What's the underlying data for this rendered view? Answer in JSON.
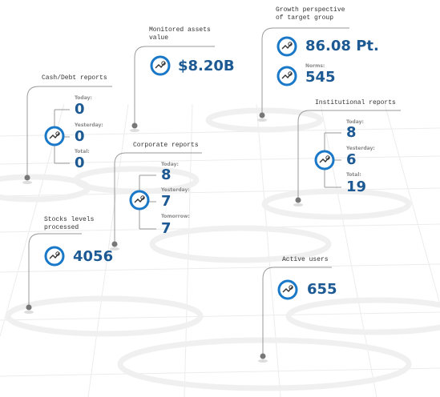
{
  "widgets": [
    {
      "title": [
        "Cash/Debt reports"
      ],
      "items": [
        {
          "label": "Today:",
          "value": "0"
        },
        {
          "label": "Yesterday:",
          "value": "0"
        },
        {
          "label": "Total:",
          "value": "0"
        }
      ]
    },
    {
      "title": [
        "Monitored assets",
        "value"
      ],
      "items": [
        {
          "value": "$8.20B"
        }
      ]
    },
    {
      "title": [
        "Growth perspective",
        "of target group"
      ],
      "items": [
        {
          "value": "86.08 Pt."
        },
        {
          "label": "Norms:",
          "value": "545"
        }
      ]
    },
    {
      "title": [
        "Institutional reports"
      ],
      "items": [
        {
          "label": "Today:",
          "value": "8"
        },
        {
          "label": "Yesterday:",
          "value": "6"
        },
        {
          "label": "Total:",
          "value": "19"
        }
      ]
    },
    {
      "title": [
        "Corporate reports"
      ],
      "items": [
        {
          "label": "Today:",
          "value": "8"
        },
        {
          "label": "Yesterday:",
          "value": "7"
        },
        {
          "label": "Tomorrow:",
          "value": "7"
        }
      ]
    },
    {
      "title": [
        "Stocks levels",
        "processed"
      ],
      "items": [
        {
          "value": "4056"
        }
      ]
    },
    {
      "title": [
        "Active users"
      ],
      "items": [
        {
          "value": "655"
        }
      ]
    }
  ]
}
